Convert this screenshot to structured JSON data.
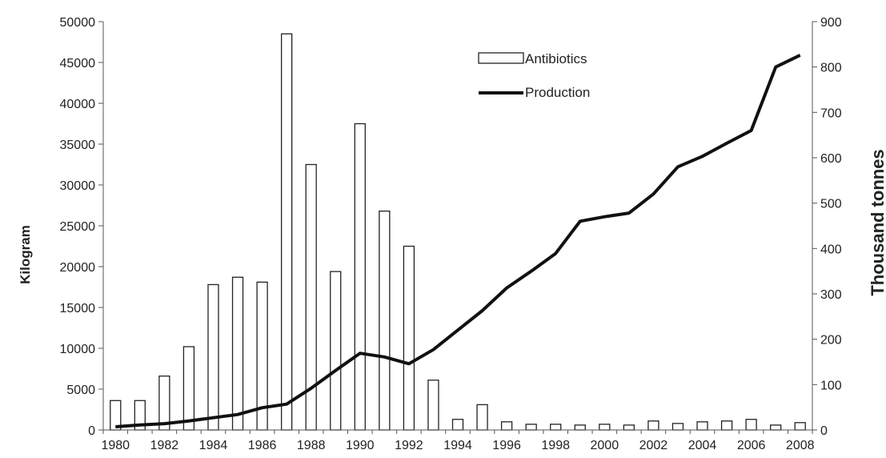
{
  "chart_data": {
    "type": "bar",
    "categories": [
      "1980",
      "1981",
      "1982",
      "1983",
      "1984",
      "1985",
      "1986",
      "1987",
      "1988",
      "1989",
      "1990",
      "1991",
      "1992",
      "1993",
      "1994",
      "1995",
      "1996",
      "1997",
      "1998",
      "1999",
      "2000",
      "2001",
      "2002",
      "2003",
      "2004",
      "2005",
      "2006",
      "2007",
      "2008"
    ],
    "x_tick_labels": [
      "1980",
      "1982",
      "1984",
      "1986",
      "1988",
      "1990",
      "1992",
      "1994",
      "1996",
      "1998",
      "2000",
      "2002",
      "2004",
      "2006",
      "2008"
    ],
    "series": [
      {
        "name": "Antibiotics",
        "type": "bar",
        "axis": "left",
        "values": [
          3600,
          3600,
          6600,
          10200,
          17800,
          18700,
          18100,
          48500,
          32500,
          19400,
          37500,
          26800,
          22500,
          6100,
          1300,
          3100,
          1000,
          700,
          700,
          600,
          700,
          600,
          1100,
          800,
          1000,
          1100,
          1300,
          600,
          900
        ]
      },
      {
        "name": "Production",
        "type": "line",
        "axis": "right",
        "values": [
          7,
          11,
          14,
          20,
          27,
          34,
          49,
          57,
          92,
          131,
          169,
          161,
          146,
          177,
          220,
          263,
          313,
          350,
          389,
          460,
          470,
          478,
          520,
          580,
          603,
          632,
          660,
          800,
          826
        ]
      }
    ],
    "y_left": {
      "label": "Kilogram",
      "range": [
        0,
        50000
      ],
      "ticks": [
        "0",
        "5000",
        "10000",
        "15000",
        "20000",
        "25000",
        "30000",
        "35000",
        "40000",
        "45000",
        "50000"
      ]
    },
    "y_right": {
      "label": "Thousand tonnes",
      "range": [
        0,
        900
      ],
      "ticks": [
        "0",
        "100",
        "200",
        "300",
        "400",
        "500",
        "600",
        "700",
        "800",
        "900"
      ]
    },
    "legend": {
      "placement": "top-center",
      "entries": [
        "Antibiotics",
        "Production"
      ]
    },
    "grid": false
  }
}
